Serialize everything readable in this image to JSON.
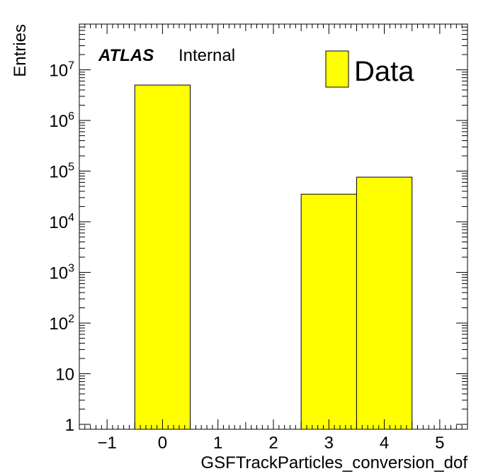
{
  "chart_data": {
    "type": "bar",
    "histogram": true,
    "log_y": true,
    "x_edges": [
      -0.5,
      0.5,
      1.5,
      2.5,
      3.5,
      4.5
    ],
    "bin_centers": [
      0,
      1,
      2,
      3,
      4
    ],
    "series": [
      {
        "name": "Data",
        "values": [
          5000000,
          0,
          0,
          35000,
          76000
        ],
        "color": "#ffff00"
      }
    ],
    "xlabel": "GSFTrackParticles_conversion_dof",
    "ylabel": "Entries",
    "xlim": [
      -1.5,
      5.5
    ],
    "ylim": [
      0.8,
      80000000
    ],
    "x_ticks": [
      {
        "value": -1,
        "label": "−1"
      },
      {
        "value": 0,
        "label": "0"
      },
      {
        "value": 1,
        "label": "1"
      },
      {
        "value": 2,
        "label": "2"
      },
      {
        "value": 3,
        "label": "3"
      },
      {
        "value": 4,
        "label": "4"
      },
      {
        "value": 5,
        "label": "5"
      }
    ],
    "y_ticks": [
      {
        "value": 1,
        "base": "1",
        "exp": ""
      },
      {
        "value": 10,
        "base": "10",
        "exp": ""
      },
      {
        "value": 100,
        "base": "10",
        "exp": "2"
      },
      {
        "value": 1000,
        "base": "10",
        "exp": "3"
      },
      {
        "value": 10000,
        "base": "10",
        "exp": "4"
      },
      {
        "value": 100000,
        "base": "10",
        "exp": "5"
      },
      {
        "value": 1000000,
        "base": "10",
        "exp": "6"
      },
      {
        "value": 10000000,
        "base": "10",
        "exp": "7"
      }
    ],
    "grid": false,
    "legend": {
      "placement": "top-right",
      "entries": [
        "Data"
      ]
    },
    "annotation": {
      "experiment": "ATLAS",
      "status": "Internal"
    }
  }
}
